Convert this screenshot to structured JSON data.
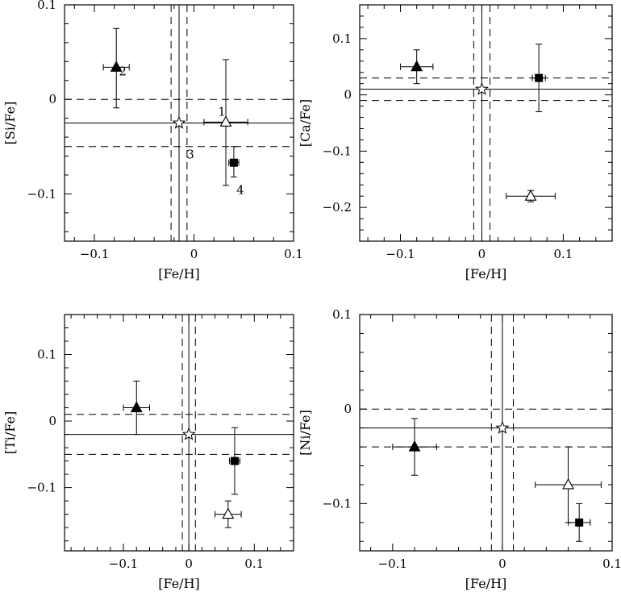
{
  "chart_data": [
    {
      "type": "scatter",
      "xlabel": "[Fe/H]",
      "ylabel": "[Si/Fe]",
      "xlim": [
        -0.13,
        0.1
      ],
      "ylim": [
        -0.15,
        0.1
      ],
      "xticks": [
        -0.1,
        0,
        0.1
      ],
      "xtick_labels": [
        "−0.1",
        "0",
        "0.1"
      ],
      "yticks": [
        -0.1,
        0,
        0.1
      ],
      "ytick_labels": [
        "−0.1",
        "0",
        "0.1"
      ],
      "grid": false,
      "hlines": [
        {
          "y": -0.025,
          "style": "solid"
        },
        {
          "y": 0.0,
          "style": "dashed"
        },
        {
          "y": -0.05,
          "style": "dashed"
        }
      ],
      "vlines": [
        {
          "x": -0.015,
          "style": "solid"
        },
        {
          "x": -0.023,
          "style": "dashed"
        },
        {
          "x": -0.007,
          "style": "dashed"
        }
      ],
      "points": [
        {
          "marker": "filled-triangle",
          "x": -0.078,
          "y": 0.034,
          "xerr": 0.013,
          "yerr": [
            0.043,
            0.041
          ],
          "label": "2"
        },
        {
          "marker": "open-triangle",
          "x": 0.032,
          "y": -0.024,
          "xerr": 0.022,
          "yerr": [
            0.067,
            0.066
          ],
          "label": "1"
        },
        {
          "marker": "star",
          "x": -0.015,
          "y": -0.025,
          "label": "3"
        },
        {
          "marker": "filled-square",
          "x": 0.04,
          "y": -0.067,
          "xerr": 0.005,
          "yerr": [
            0.015,
            0.017
          ],
          "label": "4"
        }
      ]
    },
    {
      "type": "scatter",
      "xlabel": "[Fe/H]",
      "ylabel": "[Ca/Fe]",
      "xlim": [
        -0.15,
        0.16
      ],
      "ylim": [
        -0.26,
        0.16
      ],
      "xticks": [
        -0.1,
        0,
        0.1
      ],
      "xtick_labels": [
        "−0.1",
        "0",
        "0.1"
      ],
      "yticks": [
        -0.2,
        -0.1,
        0,
        0.1
      ],
      "ytick_labels": [
        "−0.2",
        "−0.1",
        "0",
        "0.1"
      ],
      "grid": false,
      "hlines": [
        {
          "y": 0.01,
          "style": "solid"
        },
        {
          "y": 0.03,
          "style": "dashed"
        },
        {
          "y": -0.01,
          "style": "dashed"
        }
      ],
      "vlines": [
        {
          "x": 0.0,
          "style": "solid"
        },
        {
          "x": -0.01,
          "style": "dashed"
        },
        {
          "x": 0.01,
          "style": "dashed"
        }
      ],
      "points": [
        {
          "marker": "filled-triangle",
          "x": -0.08,
          "y": 0.05,
          "xerr": 0.02,
          "yerr": [
            0.03,
            0.03
          ]
        },
        {
          "marker": "filled-square",
          "x": 0.07,
          "y": 0.03,
          "xerr": 0.008,
          "yerr": [
            0.06,
            0.06
          ]
        },
        {
          "marker": "star",
          "x": 0.0,
          "y": 0.01
        },
        {
          "marker": "open-triangle",
          "x": 0.06,
          "y": -0.18,
          "xerr": 0.03,
          "yerr": [
            0.01,
            0.01
          ]
        }
      ]
    },
    {
      "type": "scatter",
      "xlabel": "[Fe/H]",
      "ylabel": "[Ti/Fe]",
      "xlim": [
        -0.19,
        0.16
      ],
      "ylim": [
        -0.195,
        0.16
      ],
      "xticks": [
        -0.1,
        0,
        0.1
      ],
      "xtick_labels": [
        "−0.1",
        "0",
        "0.1"
      ],
      "yticks": [
        -0.1,
        0,
        0.1
      ],
      "ytick_labels": [
        "−0.1",
        "0",
        "0.1"
      ],
      "grid": false,
      "hlines": [
        {
          "y": -0.02,
          "style": "solid"
        },
        {
          "y": 0.01,
          "style": "dashed"
        },
        {
          "y": -0.05,
          "style": "dashed"
        }
      ],
      "vlines": [
        {
          "x": 0.0,
          "style": "solid"
        },
        {
          "x": -0.01,
          "style": "dashed"
        },
        {
          "x": 0.01,
          "style": "dashed"
        }
      ],
      "points": [
        {
          "marker": "filled-triangle",
          "x": -0.08,
          "y": 0.02,
          "xerr": 0.02,
          "yerr": [
            0.04,
            0.04
          ]
        },
        {
          "marker": "star",
          "x": 0.0,
          "y": -0.02
        },
        {
          "marker": "filled-square",
          "x": 0.07,
          "y": -0.06,
          "xerr": 0.008,
          "yerr": [
            0.05,
            0.05
          ]
        },
        {
          "marker": "open-triangle",
          "x": 0.06,
          "y": -0.14,
          "xerr": 0.02,
          "yerr": [
            0.02,
            0.02
          ]
        }
      ]
    },
    {
      "type": "scatter",
      "xlabel": "[Fe/H]",
      "ylabel": "[Ni/Fe]",
      "xlim": [
        -0.13,
        0.1
      ],
      "ylim": [
        -0.15,
        0.1
      ],
      "xticks": [
        -0.1,
        0,
        0.1
      ],
      "xtick_labels": [
        "−0.1",
        "0",
        "0.1"
      ],
      "yticks": [
        -0.1,
        0,
        0.1
      ],
      "ytick_labels": [
        "−0.1",
        "0",
        "0.1"
      ],
      "grid": false,
      "hlines": [
        {
          "y": -0.02,
          "style": "solid"
        },
        {
          "y": 0.0,
          "style": "dashed"
        },
        {
          "y": -0.04,
          "style": "dashed"
        }
      ],
      "vlines": [
        {
          "x": 0.0,
          "style": "solid"
        },
        {
          "x": -0.01,
          "style": "dashed"
        },
        {
          "x": 0.01,
          "style": "dashed"
        }
      ],
      "points": [
        {
          "marker": "filled-triangle",
          "x": -0.08,
          "y": -0.04,
          "xerr": 0.02,
          "yerr": [
            0.03,
            0.03
          ]
        },
        {
          "marker": "star",
          "x": 0.0,
          "y": -0.02
        },
        {
          "marker": "open-triangle",
          "x": 0.06,
          "y": -0.08,
          "xerr": 0.03,
          "yerr": [
            0.04,
            0.04
          ]
        },
        {
          "marker": "filled-square",
          "x": 0.07,
          "y": -0.12,
          "xerr": 0.01,
          "yerr": [
            0.02,
            0.02
          ]
        }
      ]
    }
  ]
}
